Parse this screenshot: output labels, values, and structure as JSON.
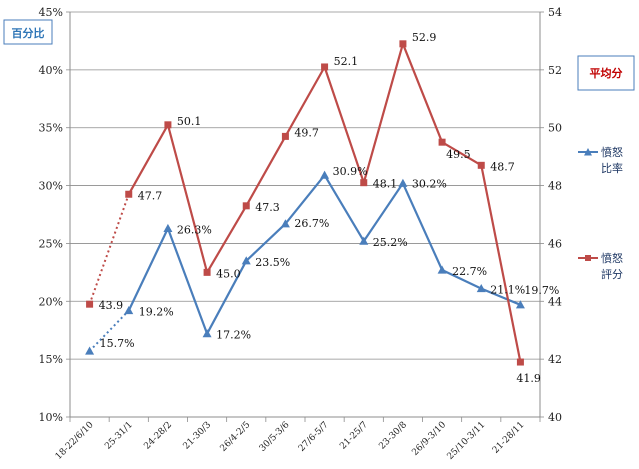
{
  "chart_data": {
    "type": "line",
    "categories": [
      "18-22/6/10",
      "25-31/1",
      "24-28/2",
      "21-30/3",
      "26/4-2/5",
      "30/5-3/6",
      "27/6-5/7",
      "21-25/7",
      "23-30/8",
      "26/9-3/10",
      "25/10-3/11",
      "21-28/11"
    ],
    "left_axis": {
      "label": "百分比",
      "ylim": [
        10,
        45
      ],
      "ticks": [
        "10%",
        "15%",
        "20%",
        "25%",
        "30%",
        "35%",
        "40%",
        "45%"
      ]
    },
    "right_axis": {
      "label": "平均分",
      "ylim": [
        40,
        54
      ],
      "ticks": [
        "40",
        "42",
        "44",
        "46",
        "48",
        "50",
        "52",
        "54"
      ]
    },
    "series": [
      {
        "name": "憤怒比率",
        "axis": "left",
        "color": "#4a7ebb",
        "marker": "triangle",
        "values": [
          15.7,
          19.2,
          26.3,
          17.2,
          23.5,
          26.7,
          30.9,
          25.2,
          30.2,
          22.7,
          21.1,
          19.7
        ],
        "labels": [
          "15.7%",
          "19.2%",
          "26.3%",
          "17.2%",
          "23.5%",
          "26.7%",
          "30.9%",
          "25.2%",
          "30.2%",
          "22.7%",
          "21.1%",
          "19.7%"
        ]
      },
      {
        "name": "憤怒評分",
        "axis": "right",
        "color": "#be4b48",
        "marker": "square",
        "values": [
          43.9,
          47.7,
          50.1,
          45.0,
          47.3,
          49.7,
          52.1,
          48.1,
          52.9,
          49.5,
          48.7,
          41.9
        ],
        "labels": [
          "43.9",
          "47.7",
          "50.1",
          "45.0",
          "47.3",
          "49.7",
          "52.1",
          "48.1",
          "52.9",
          "49.5",
          "48.7",
          "41.9"
        ]
      }
    ],
    "legend": {
      "placement": "right",
      "entries": [
        {
          "name": "憤怒比率",
          "lines": [
            "憤怒",
            "比率"
          ]
        },
        {
          "name": "憤怒評分",
          "lines": [
            "憤怒",
            "評分"
          ]
        }
      ]
    },
    "grid": "horizontal"
  }
}
